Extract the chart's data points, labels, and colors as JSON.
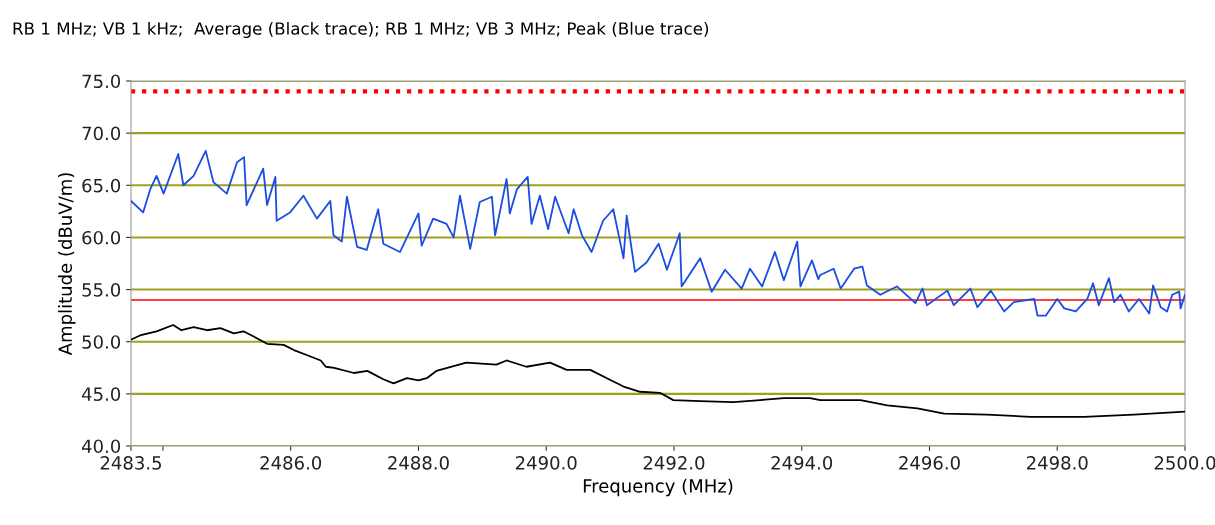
{
  "chart_data": {
    "type": "line",
    "title": "RB 1 MHz; VB 1 kHz;  Average (Black trace); RB 1 MHz; VB 3 MHz; Peak (Blue trace)",
    "xlabel": "Frequency (MHz)",
    "ylabel": "Amplitude (dBuV/m)",
    "xlim": [
      2483.5,
      2500.0
    ],
    "xticks": [
      {
        "value": 2483.5,
        "label": "2483.5"
      },
      {
        "value": 2484,
        "label": null
      },
      {
        "value": 2486,
        "label": "2486.0"
      },
      {
        "value": 2488,
        "label": "2488.0"
      },
      {
        "value": 2490,
        "label": "2490.0"
      },
      {
        "value": 2492,
        "label": "2492.0"
      },
      {
        "value": 2494,
        "label": "2494.0"
      },
      {
        "value": 2496,
        "label": "2496.0"
      },
      {
        "value": 2498,
        "label": "2498.0"
      },
      {
        "value": 2500,
        "label": "2500.0"
      }
    ],
    "ylim": [
      40,
      75
    ],
    "yticks": [
      {
        "value": 40,
        "label": "40.0"
      },
      {
        "value": 45,
        "label": "45.0"
      },
      {
        "value": 50,
        "label": "50.0"
      },
      {
        "value": 55,
        "label": "55.0"
      },
      {
        "value": 60,
        "label": "60.0"
      },
      {
        "value": 65,
        "label": "65.0"
      },
      {
        "value": 70,
        "label": "70.0"
      },
      {
        "value": 75,
        "label": "75.0"
      }
    ],
    "grid": "y",
    "marker": "none",
    "line_style": "solid",
    "ref_lines": [
      {
        "axis": "y",
        "value": 74.0,
        "color": "#ff0000",
        "line_style": "dotted"
      },
      {
        "axis": "y",
        "value": 54.0,
        "color": "#ff0000",
        "line_style": "solid"
      }
    ],
    "series": [
      {
        "color": "#1a4de0",
        "x": [
          2483.5,
          2483.69,
          2483.8,
          2483.9,
          2484.01,
          2484.24,
          2484.32,
          2484.48,
          2484.67,
          2484.79,
          2485.0,
          2485.16,
          2485.27,
          2485.31,
          2485.57,
          2485.63,
          2485.76,
          2485.78,
          2485.99,
          2486.2,
          2486.41,
          2486.62,
          2486.67,
          2486.8,
          2486.88,
          2487.04,
          2487.19,
          2487.37,
          2487.45,
          2487.71,
          2488.0,
          2488.05,
          2488.23,
          2488.44,
          2488.55,
          2488.65,
          2488.81,
          2488.96,
          2489.15,
          2489.2,
          2489.38,
          2489.43,
          2489.54,
          2489.71,
          2489.77,
          2489.9,
          2490.03,
          2490.14,
          2490.35,
          2490.43,
          2490.56,
          2490.71,
          2490.89,
          2491.05,
          2491.21,
          2491.26,
          2491.39,
          2491.57,
          2491.76,
          2491.89,
          2492.09,
          2492.12,
          2492.41,
          2492.59,
          2492.8,
          2493.06,
          2493.19,
          2493.38,
          2493.58,
          2493.72,
          2493.93,
          2493.98,
          2494.16,
          2494.26,
          2494.29,
          2494.5,
          2494.61,
          2494.82,
          2494.95,
          2495.02,
          2495.23,
          2495.49,
          2495.78,
          2495.89,
          2495.96,
          2496.28,
          2496.38,
          2496.64,
          2496.75,
          2496.96,
          2497.17,
          2497.32,
          2497.64,
          2497.69,
          2497.82,
          2498.0,
          2498.11,
          2498.29,
          2498.47,
          2498.56,
          2498.65,
          2498.81,
          2498.89,
          2498.99,
          2499.12,
          2499.28,
          2499.44,
          2499.5,
          2499.62,
          2499.72,
          2499.8,
          2499.91,
          2499.93,
          2500.0
        ],
        "values": [
          63.5,
          62.4,
          64.6,
          65.9,
          64.2,
          68.0,
          65.0,
          65.9,
          68.3,
          65.3,
          64.2,
          67.2,
          67.7,
          63.1,
          66.6,
          63.1,
          65.8,
          61.6,
          62.4,
          64.0,
          61.8,
          63.5,
          60.2,
          59.6,
          63.9,
          59.1,
          58.8,
          62.7,
          59.4,
          58.6,
          62.3,
          59.2,
          61.8,
          61.3,
          60.0,
          64.0,
          58.9,
          63.4,
          63.9,
          60.2,
          65.6,
          62.3,
          64.6,
          65.8,
          61.3,
          64.0,
          60.8,
          63.9,
          60.4,
          62.7,
          60.2,
          58.6,
          61.6,
          62.7,
          58.0,
          62.1,
          56.7,
          57.6,
          59.4,
          56.9,
          60.4,
          55.3,
          58.0,
          54.8,
          56.9,
          55.1,
          57.0,
          55.3,
          58.6,
          55.9,
          59.6,
          55.3,
          57.8,
          56.0,
          56.4,
          57.0,
          55.1,
          57.0,
          57.2,
          55.4,
          54.5,
          55.3,
          53.7,
          55.1,
          53.5,
          54.9,
          53.5,
          55.1,
          53.3,
          54.9,
          52.9,
          53.8,
          54.1,
          52.5,
          52.5,
          54.1,
          53.2,
          52.9,
          54.1,
          55.6,
          53.5,
          56.1,
          53.8,
          54.5,
          52.9,
          54.1,
          52.7,
          55.4,
          53.3,
          52.9,
          54.5,
          54.8,
          53.2,
          54.5
        ]
      },
      {
        "color": "#000000",
        "x": [
          2483.5,
          2483.64,
          2483.9,
          2484.16,
          2484.29,
          2484.48,
          2484.69,
          2484.9,
          2485.11,
          2485.26,
          2485.42,
          2485.63,
          2485.89,
          2486.05,
          2486.26,
          2486.47,
          2486.55,
          2486.68,
          2486.99,
          2487.2,
          2487.45,
          2487.61,
          2487.82,
          2488.0,
          2488.13,
          2488.28,
          2488.75,
          2489.22,
          2489.38,
          2489.69,
          2490.06,
          2490.32,
          2490.69,
          2490.95,
          2491.21,
          2491.47,
          2491.78,
          2491.99,
          2492.41,
          2492.93,
          2493.35,
          2493.72,
          2494.13,
          2494.29,
          2494.92,
          2495.34,
          2495.81,
          2496.23,
          2496.9,
          2497.58,
          2498.42,
          2499.2,
          2500.0
        ],
        "values": [
          50.2,
          50.6,
          51.0,
          51.6,
          51.1,
          51.4,
          51.1,
          51.3,
          50.8,
          51.0,
          50.5,
          49.8,
          49.7,
          49.2,
          48.7,
          48.2,
          47.6,
          47.5,
          47.0,
          47.2,
          46.4,
          46.0,
          46.5,
          46.3,
          46.5,
          47.2,
          48.0,
          47.8,
          48.2,
          47.6,
          48.0,
          47.3,
          47.3,
          46.5,
          45.7,
          45.2,
          45.1,
          44.4,
          44.3,
          44.2,
          44.4,
          44.6,
          44.6,
          44.4,
          44.4,
          43.9,
          43.6,
          43.1,
          43.0,
          42.8,
          42.8,
          43.0,
          43.3
        ]
      }
    ]
  }
}
